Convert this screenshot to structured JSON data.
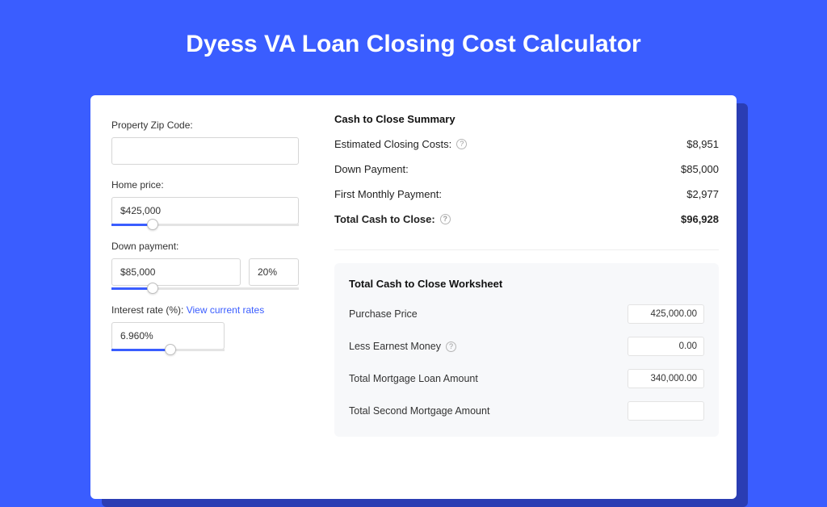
{
  "page": {
    "title": "Dyess VA Loan Closing Cost Calculator",
    "bg_color": "#3a5dff",
    "shadow_color": "#2a3db3"
  },
  "inputs": {
    "zip": {
      "label": "Property Zip Code:",
      "value": ""
    },
    "home_price": {
      "label": "Home price:",
      "value": "$425,000",
      "slider_percent": 22
    },
    "down_payment": {
      "label": "Down payment:",
      "value": "$85,000",
      "percent": "20%",
      "slider_percent": 22
    },
    "interest": {
      "label_prefix": "Interest rate (%): ",
      "link_text": "View current rates",
      "value": "6.960%",
      "slider_percent": 52
    }
  },
  "summary": {
    "title": "Cash to Close Summary",
    "rows": [
      {
        "label": "Estimated Closing Costs:",
        "help": true,
        "value": "$8,951",
        "bold": false
      },
      {
        "label": "Down Payment:",
        "help": false,
        "value": "$85,000",
        "bold": false
      },
      {
        "label": "First Monthly Payment:",
        "help": false,
        "value": "$2,977",
        "bold": false
      },
      {
        "label": "Total Cash to Close:",
        "help": true,
        "value": "$96,928",
        "bold": true
      }
    ]
  },
  "worksheet": {
    "title": "Total Cash to Close Worksheet",
    "rows": [
      {
        "label": "Purchase Price",
        "help": false,
        "value": "425,000.00"
      },
      {
        "label": "Less Earnest Money",
        "help": true,
        "value": "0.00"
      },
      {
        "label": "Total Mortgage Loan Amount",
        "help": false,
        "value": "340,000.00"
      },
      {
        "label": "Total Second Mortgage Amount",
        "help": false,
        "value": ""
      }
    ]
  }
}
